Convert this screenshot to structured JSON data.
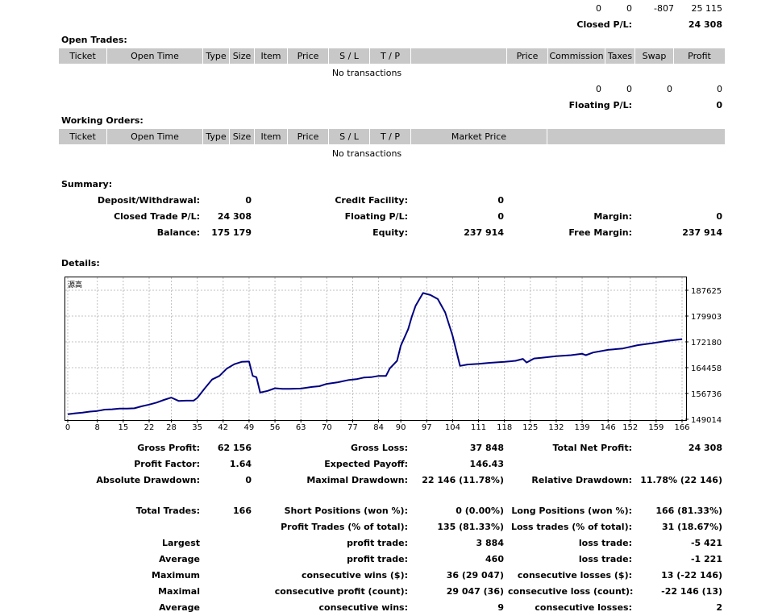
{
  "top_totals": {
    "row1": [
      "0",
      "0",
      "-807",
      "25 115"
    ],
    "closed_pl_label": "Closed P/L:",
    "closed_pl_value": "24 308"
  },
  "open_trades": {
    "title": "Open Trades:",
    "columns": [
      "Ticket",
      "Open Time",
      "Type",
      "Size",
      "Item",
      "Price",
      "S / L",
      "T / P",
      "",
      "Price",
      "Commission",
      "Taxes",
      "Swap",
      "Profit"
    ],
    "empty_text": "No transactions",
    "totals": [
      "0",
      "0",
      "0",
      "0"
    ],
    "floating_label": "Floating P/L:",
    "floating_value": "0"
  },
  "working_orders": {
    "title": "Working Orders:",
    "columns": [
      "Ticket",
      "Open Time",
      "Type",
      "Size",
      "Item",
      "Price",
      "S / L",
      "T / P",
      "Market Price",
      ""
    ],
    "empty_text": "No transactions"
  },
  "summary": {
    "title": "Summary:",
    "deposit_label": "Deposit/Withdrawal:",
    "deposit_value": "0",
    "credit_label": "Credit Facility:",
    "credit_value": "0",
    "closed_trade_label": "Closed Trade P/L:",
    "closed_trade_value": "24 308",
    "floating_label": "Floating P/L:",
    "floating_value": "0",
    "margin_label": "Margin:",
    "margin_value": "0",
    "balance_label": "Balance:",
    "balance_value": "175 179",
    "equity_label": "Equity:",
    "equity_value": "237 914",
    "free_margin_label": "Free Margin:",
    "free_margin_value": "237 914"
  },
  "details": {
    "title": "Details:"
  },
  "chart_data": {
    "type": "line",
    "title": "",
    "xlabel": "",
    "ylabel": "",
    "corner_label": "源高",
    "x_ticks": [
      0,
      8,
      15,
      22,
      28,
      35,
      42,
      49,
      56,
      63,
      70,
      77,
      84,
      90,
      97,
      104,
      111,
      118,
      125,
      132,
      139,
      146,
      152,
      159,
      166
    ],
    "y_ticks": [
      "187625",
      "179903",
      "172180",
      "164458",
      "156736",
      "149014"
    ],
    "ylim": [
      149014,
      187625
    ],
    "xlim": [
      0,
      166
    ],
    "grid": true,
    "color": "#000080",
    "series": [
      {
        "x": [
          0,
          2,
          4,
          6,
          8,
          10,
          12,
          14,
          16,
          18,
          20,
          22,
          24,
          26,
          28,
          30,
          32,
          34,
          35,
          37,
          39,
          41,
          43,
          45,
          47,
          49,
          50,
          51,
          52,
          54,
          56,
          58,
          60,
          63,
          66,
          68,
          70,
          73,
          76,
          78,
          80,
          82,
          84,
          86,
          87,
          89,
          90,
          92,
          93,
          94,
          96,
          98,
          100,
          102,
          104,
          105,
          106,
          108,
          111,
          114,
          118,
          121,
          123,
          124,
          126,
          128,
          132,
          136,
          139,
          140,
          142,
          146,
          150,
          154,
          158,
          162,
          166
        ],
        "y": [
          150500,
          150800,
          151000,
          151300,
          151500,
          151900,
          152000,
          152200,
          152200,
          152300,
          152900,
          153400,
          154000,
          154800,
          155500,
          154500,
          154600,
          154600,
          155400,
          158200,
          160900,
          162000,
          164200,
          165500,
          166200,
          166300,
          162000,
          161600,
          157000,
          157500,
          158300,
          158100,
          158100,
          158200,
          158700,
          158900,
          159600,
          160100,
          160800,
          161000,
          161500,
          161600,
          162000,
          162000,
          164200,
          166500,
          171000,
          176000,
          179800,
          183000,
          186800,
          186200,
          185000,
          181000,
          174000,
          169500,
          165000,
          165400,
          165600,
          165900,
          166200,
          166500,
          167100,
          166000,
          167200,
          167400,
          167900,
          168200,
          168600,
          168200,
          169000,
          169800,
          170200,
          171200,
          171800,
          172500,
          173000
        ]
      }
    ]
  },
  "stats": {
    "gross_profit_label": "Gross Profit:",
    "gross_profit_value": "62 156",
    "gross_loss_label": "Gross Loss:",
    "gross_loss_value": "37 848",
    "total_net_label": "Total Net Profit:",
    "total_net_value": "24 308",
    "profit_factor_label": "Profit Factor:",
    "profit_factor_value": "1.64",
    "expected_payoff_label": "Expected Payoff:",
    "expected_payoff_value": "146.43",
    "abs_dd_label": "Absolute Drawdown:",
    "abs_dd_value": "0",
    "max_dd_label": "Maximal Drawdown:",
    "max_dd_value": "22 146 (11.78%)",
    "rel_dd_label": "Relative Drawdown:",
    "rel_dd_value": "11.78% (22 146)",
    "total_trades_label": "Total Trades:",
    "total_trades_value": "166",
    "short_label": "Short Positions (won %):",
    "short_value": "0 (0.00%)",
    "long_label": "Long Positions (won %):",
    "long_value": "166 (81.33%)",
    "profit_trades_label": "Profit Trades (% of total):",
    "profit_trades_value": "135 (81.33%)",
    "loss_trades_label": "Loss trades (% of total):",
    "loss_trades_value": "31 (18.67%)",
    "largest_label": "Largest",
    "largest_profit_label": "profit trade:",
    "largest_profit_value": "3 884",
    "largest_loss_label": "loss trade:",
    "largest_loss_value": "-5 421",
    "average_label": "Average",
    "average_profit_label": "profit trade:",
    "average_profit_value": "460",
    "average_loss_label": "loss trade:",
    "average_loss_value": "-1 221",
    "maximum_label": "Maximum",
    "max_cons_wins_label": "consecutive wins ($):",
    "max_cons_wins_value": "36 (29 047)",
    "max_cons_losses_label": "consecutive losses ($):",
    "max_cons_losses_value": "13 (-22 146)",
    "maximal_label": "Maximal",
    "maximal_profit_label": "consecutive profit (count):",
    "maximal_profit_value": "29 047 (36)",
    "maximal_loss_label": "consecutive loss (count):",
    "maximal_loss_value": "-22 146 (13)",
    "average2_label": "Average",
    "avg_cons_wins_label": "consecutive wins:",
    "avg_cons_wins_value": "9",
    "avg_cons_losses_label": "consecutive losses:",
    "avg_cons_losses_value": "2"
  }
}
